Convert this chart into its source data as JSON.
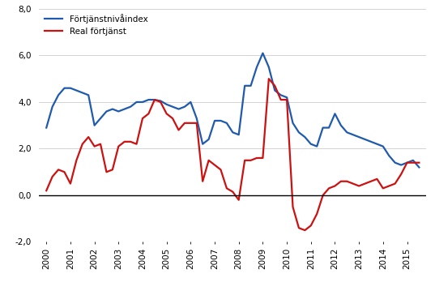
{
  "blue_label": "Förtjänstnivåindex",
  "red_label": "Real förtjänst",
  "blue_color": "#1f5aad",
  "red_color": "#cc1111",
  "background_color": "#ffffff",
  "ylim": [
    -2.0,
    8.0
  ],
  "yticks": [
    -2.0,
    0.0,
    2.0,
    4.0,
    6.0,
    8.0
  ],
  "ytick_labels": [
    "-2,0",
    "0,0",
    "2,0",
    "4,0",
    "6,0",
    "8,0"
  ],
  "grid_color": "#cccccc",
  "x_labels": [
    "2000",
    "2001",
    "2002",
    "2003",
    "2004",
    "2005",
    "2006",
    "2007",
    "2008",
    "2009",
    "2010",
    "2011",
    "2012",
    "2013",
    "2014",
    "2015"
  ],
  "blue_x": [
    0.0,
    0.25,
    0.5,
    0.75,
    1.0,
    1.25,
    1.5,
    1.75,
    2.0,
    2.25,
    2.5,
    2.75,
    3.0,
    3.25,
    3.5,
    3.75,
    4.0,
    4.25,
    4.5,
    4.75,
    5.0,
    5.25,
    5.5,
    5.75,
    6.0,
    6.25,
    6.5,
    6.75,
    7.0,
    7.25,
    7.5,
    7.75,
    8.0,
    8.25,
    8.5,
    8.75,
    9.0,
    9.25,
    9.5,
    9.75,
    10.0,
    10.25,
    10.5,
    10.75,
    11.0,
    11.25,
    11.5,
    11.75,
    12.0,
    12.25,
    12.5,
    12.75,
    13.0,
    13.25,
    13.5,
    13.75,
    14.0,
    14.25,
    14.5,
    14.75,
    15.0,
    15.25,
    15.5
  ],
  "blue_y": [
    2.9,
    3.8,
    4.3,
    4.6,
    4.6,
    4.5,
    4.4,
    4.3,
    3.0,
    3.3,
    3.6,
    3.7,
    3.6,
    3.7,
    3.8,
    4.0,
    4.0,
    4.1,
    4.1,
    4.05,
    3.9,
    3.8,
    3.7,
    3.8,
    4.0,
    3.3,
    2.2,
    2.4,
    3.2,
    3.2,
    3.1,
    2.7,
    2.6,
    4.7,
    4.7,
    5.5,
    6.1,
    5.5,
    4.5,
    4.3,
    4.2,
    3.1,
    2.7,
    2.5,
    2.2,
    2.1,
    2.9,
    2.9,
    3.5,
    3.0,
    2.7,
    2.6,
    2.5,
    2.4,
    2.3,
    2.2,
    2.1,
    1.7,
    1.4,
    1.3,
    1.4,
    1.5,
    1.2
  ],
  "red_x": [
    0.0,
    0.25,
    0.5,
    0.75,
    1.0,
    1.25,
    1.5,
    1.75,
    2.0,
    2.25,
    2.5,
    2.75,
    3.0,
    3.25,
    3.5,
    3.75,
    4.0,
    4.25,
    4.5,
    4.75,
    5.0,
    5.25,
    5.5,
    5.75,
    6.0,
    6.25,
    6.5,
    6.75,
    7.0,
    7.25,
    7.5,
    7.75,
    8.0,
    8.25,
    8.5,
    8.75,
    9.0,
    9.25,
    9.5,
    9.75,
    10.0,
    10.25,
    10.5,
    10.75,
    11.0,
    11.25,
    11.5,
    11.75,
    12.0,
    12.25,
    12.5,
    12.75,
    13.0,
    13.25,
    13.5,
    13.75,
    14.0,
    14.25,
    14.5,
    14.75,
    15.0,
    15.25,
    15.5
  ],
  "red_y": [
    0.2,
    0.8,
    1.1,
    1.0,
    0.5,
    1.5,
    2.2,
    2.5,
    2.1,
    2.2,
    1.0,
    1.1,
    2.1,
    2.3,
    2.3,
    2.2,
    3.3,
    3.5,
    4.1,
    4.0,
    3.5,
    3.3,
    2.8,
    3.1,
    3.1,
    3.1,
    0.6,
    1.5,
    1.3,
    1.1,
    0.3,
    0.15,
    -0.2,
    1.5,
    1.5,
    1.6,
    1.6,
    5.0,
    4.7,
    4.1,
    4.1,
    -0.5,
    -1.4,
    -1.5,
    -1.3,
    -0.8,
    0.0,
    0.3,
    0.4,
    0.6,
    0.6,
    0.5,
    0.4,
    0.5,
    0.6,
    0.7,
    0.3,
    0.4,
    0.5,
    0.9,
    1.4,
    1.4,
    1.4
  ],
  "figsize": [
    5.37,
    3.64
  ],
  "dpi": 100,
  "linewidth": 1.6,
  "legend_fontsize": 7.5,
  "tick_fontsize": 7.5
}
